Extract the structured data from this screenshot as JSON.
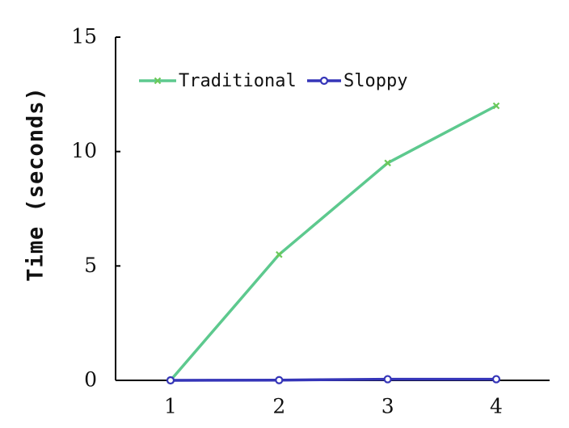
{
  "chart_data": {
    "type": "line",
    "title": "",
    "xlabel": "",
    "ylabel": "Time (seconds)",
    "x": [
      1,
      2,
      3,
      4
    ],
    "xticks": [
      "1",
      "2",
      "3",
      "4"
    ],
    "yticks": [
      "0",
      "5",
      "10",
      "15"
    ],
    "ylim": [
      0,
      15
    ],
    "grid": false,
    "legend_position": "top-left",
    "series": [
      {
        "name": "Traditional",
        "values": [
          0,
          5.5,
          9.5,
          12
        ],
        "color": "#5dc98e",
        "marker": "x"
      },
      {
        "name": "Sloppy",
        "values": [
          0,
          0.01,
          0.05,
          0.05
        ],
        "color": "#3535b8",
        "marker": "circle"
      }
    ]
  }
}
